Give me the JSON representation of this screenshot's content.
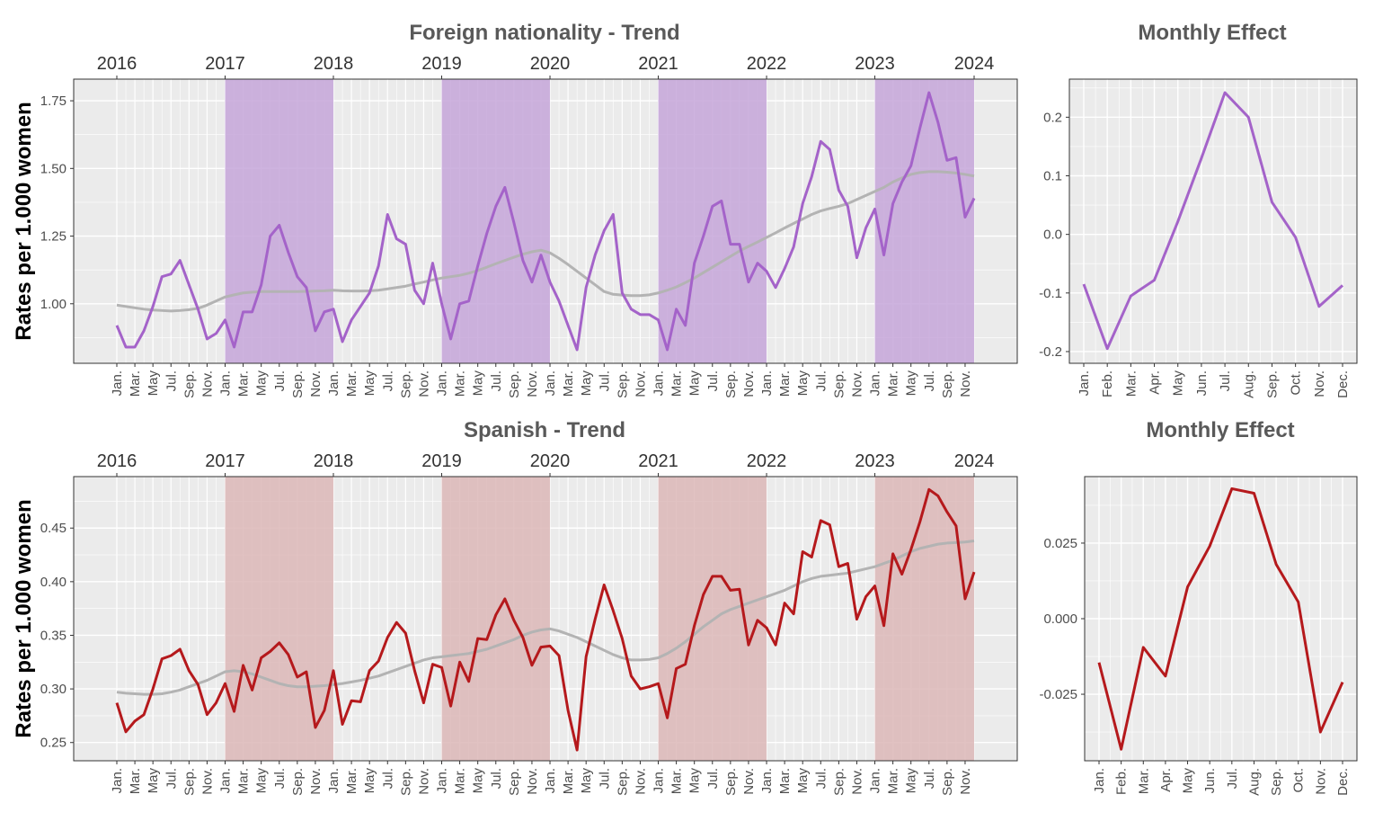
{
  "colors": {
    "foreign": "#a463c9",
    "spanish": "#b5191c",
    "trend": "#b3b3b3",
    "foreign_band": "#c5a6d9",
    "spanish_band": "#dcb7b7",
    "panel_bg": "#ebebeb",
    "grid": "#ffffff"
  },
  "chart_data": [
    {
      "id": "foreign-trend",
      "type": "line",
      "title": "Foreign nationality - Trend",
      "ylabel": "Rates per 1.000 women",
      "xlabel": "",
      "xlim": [
        0,
        95
      ],
      "ylim": [
        0.78,
        1.83
      ],
      "yticks": [
        1.0,
        1.25,
        1.5,
        1.75
      ],
      "ytick_labels": [
        "1.00",
        "1.25",
        "1.50",
        "1.75"
      ],
      "year_labels": [
        "2016",
        "2017",
        "2018",
        "2019",
        "2020",
        "2021",
        "2022",
        "2023",
        "2024"
      ],
      "year_positions": [
        0,
        12,
        24,
        36,
        48,
        60,
        72,
        84,
        95
      ],
      "month_labels": [
        "Jan.",
        "Mar.",
        "May",
        "Jul.",
        "Sep.",
        "Nov."
      ],
      "shaded_ranges": [
        [
          12,
          24
        ],
        [
          36,
          48
        ],
        [
          60,
          72
        ],
        [
          84,
          95
        ]
      ],
      "series": [
        {
          "name": "Foreign nationality",
          "role": "observed",
          "values": [
            0.92,
            0.84,
            0.84,
            0.9,
            0.99,
            1.1,
            1.11,
            1.16,
            1.07,
            0.98,
            0.87,
            0.89,
            0.94,
            0.84,
            0.97,
            0.97,
            1.07,
            1.25,
            1.29,
            1.19,
            1.1,
            1.06,
            0.9,
            0.97,
            0.98,
            0.86,
            0.94,
            0.99,
            1.04,
            1.14,
            1.33,
            1.24,
            1.22,
            1.05,
            1.0,
            1.15,
            1.0,
            0.87,
            1.0,
            1.01,
            1.14,
            1.26,
            1.36,
            1.43,
            1.3,
            1.16,
            1.08,
            1.18,
            1.08,
            1.01,
            0.92,
            0.83,
            1.06,
            1.18,
            1.27,
            1.33,
            1.04,
            0.98,
            0.96,
            0.96,
            0.94,
            0.83,
            0.98,
            0.92,
            1.15,
            1.25,
            1.36,
            1.38,
            1.22,
            1.22,
            1.08,
            1.15,
            1.12,
            1.06,
            1.13,
            1.21,
            1.37,
            1.47,
            1.6,
            1.57,
            1.42,
            1.36,
            1.17,
            1.28,
            1.35,
            1.18,
            1.37,
            1.45,
            1.51,
            1.65,
            1.78,
            1.67,
            1.53,
            1.54,
            1.32,
            1.39
          ]
        },
        {
          "name": "Trend",
          "role": "trend",
          "values": [
            0.995,
            0.99,
            0.985,
            0.98,
            0.977,
            0.975,
            0.973,
            0.975,
            0.978,
            0.983,
            0.995,
            1.01,
            1.025,
            1.033,
            1.04,
            1.043,
            1.045,
            1.045,
            1.045,
            1.045,
            1.045,
            1.046,
            1.047,
            1.048,
            1.05,
            1.048,
            1.047,
            1.047,
            1.048,
            1.05,
            1.055,
            1.06,
            1.065,
            1.073,
            1.08,
            1.088,
            1.095,
            1.1,
            1.105,
            1.113,
            1.123,
            1.135,
            1.148,
            1.16,
            1.172,
            1.183,
            1.192,
            1.198,
            1.188,
            1.168,
            1.145,
            1.12,
            1.095,
            1.07,
            1.045,
            1.035,
            1.032,
            1.03,
            1.03,
            1.033,
            1.04,
            1.05,
            1.062,
            1.078,
            1.095,
            1.115,
            1.135,
            1.155,
            1.175,
            1.195,
            1.212,
            1.228,
            1.245,
            1.262,
            1.28,
            1.297,
            1.313,
            1.33,
            1.343,
            1.352,
            1.36,
            1.37,
            1.385,
            1.4,
            1.415,
            1.43,
            1.45,
            1.465,
            1.478,
            1.485,
            1.488,
            1.488,
            1.486,
            1.483,
            1.478,
            1.472
          ]
        }
      ]
    },
    {
      "id": "foreign-monthly",
      "type": "line",
      "title": "Monthly Effect",
      "xlabel": "",
      "ylabel": "",
      "categories": [
        "Jan.",
        "Feb.",
        "Mar.",
        "Apr.",
        "May",
        "Jun.",
        "Jul.",
        "Aug.",
        "Sep.",
        "Oct.",
        "Nov.",
        "Dec."
      ],
      "ylim": [
        -0.22,
        0.265
      ],
      "yticks": [
        -0.2,
        -0.1,
        0.0,
        0.1,
        0.2
      ],
      "ytick_labels": [
        "-0.2",
        "-0.1",
        "0.0",
        "0.1",
        "0.2"
      ],
      "series": [
        {
          "name": "Monthly Effect",
          "values": [
            -0.085,
            -0.195,
            -0.105,
            -0.078,
            0.022,
            0.13,
            0.242,
            0.2,
            0.055,
            -0.005,
            -0.123,
            -0.087
          ]
        }
      ]
    },
    {
      "id": "spanish-trend",
      "type": "line",
      "title": "Spanish - Trend",
      "ylabel": "Rates per 1.000 women",
      "xlabel": "",
      "xlim": [
        0,
        95
      ],
      "ylim": [
        0.233,
        0.498
      ],
      "yticks": [
        0.25,
        0.3,
        0.35,
        0.4,
        0.45
      ],
      "ytick_labels": [
        "0.25",
        "0.30",
        "0.35",
        "0.40",
        "0.45"
      ],
      "year_labels": [
        "2016",
        "2017",
        "2018",
        "2019",
        "2020",
        "2021",
        "2022",
        "2023",
        "2024"
      ],
      "year_positions": [
        0,
        12,
        24,
        36,
        48,
        60,
        72,
        84,
        95
      ],
      "month_labels": [
        "Jan.",
        "Mar.",
        "May",
        "Jul.",
        "Sep.",
        "Nov."
      ],
      "shaded_ranges": [
        [
          12,
          24
        ],
        [
          36,
          48
        ],
        [
          60,
          72
        ],
        [
          84,
          95
        ]
      ],
      "series": [
        {
          "name": "Spanish",
          "role": "observed",
          "values": [
            0.287,
            0.26,
            0.27,
            0.276,
            0.3,
            0.328,
            0.331,
            0.337,
            0.317,
            0.304,
            0.276,
            0.287,
            0.305,
            0.279,
            0.322,
            0.299,
            0.329,
            0.335,
            0.343,
            0.332,
            0.311,
            0.316,
            0.264,
            0.28,
            0.317,
            0.267,
            0.289,
            0.288,
            0.317,
            0.326,
            0.348,
            0.362,
            0.352,
            0.317,
            0.287,
            0.323,
            0.32,
            0.284,
            0.325,
            0.307,
            0.347,
            0.346,
            0.369,
            0.384,
            0.364,
            0.348,
            0.322,
            0.339,
            0.34,
            0.331,
            0.28,
            0.243,
            0.33,
            0.365,
            0.397,
            0.373,
            0.347,
            0.312,
            0.3,
            0.302,
            0.305,
            0.273,
            0.319,
            0.323,
            0.359,
            0.388,
            0.405,
            0.405,
            0.392,
            0.393,
            0.341,
            0.364,
            0.357,
            0.341,
            0.38,
            0.37,
            0.428,
            0.423,
            0.457,
            0.453,
            0.414,
            0.417,
            0.365,
            0.386,
            0.396,
            0.359,
            0.426,
            0.407,
            0.43,
            0.456,
            0.486,
            0.48,
            0.465,
            0.452,
            0.384,
            0.409
          ]
        },
        {
          "name": "Trend",
          "role": "trend",
          "values": [
            0.297,
            0.296,
            0.2955,
            0.295,
            0.295,
            0.2955,
            0.297,
            0.299,
            0.302,
            0.305,
            0.308,
            0.312,
            0.316,
            0.317,
            0.316,
            0.314,
            0.311,
            0.308,
            0.305,
            0.303,
            0.302,
            0.302,
            0.3025,
            0.303,
            0.304,
            0.305,
            0.3065,
            0.308,
            0.31,
            0.312,
            0.315,
            0.318,
            0.321,
            0.324,
            0.327,
            0.329,
            0.33,
            0.331,
            0.332,
            0.333,
            0.335,
            0.337,
            0.34,
            0.343,
            0.346,
            0.35,
            0.353,
            0.355,
            0.356,
            0.354,
            0.351,
            0.348,
            0.344,
            0.34,
            0.336,
            0.332,
            0.329,
            0.327,
            0.327,
            0.3275,
            0.329,
            0.333,
            0.338,
            0.344,
            0.351,
            0.358,
            0.364,
            0.37,
            0.374,
            0.377,
            0.38,
            0.383,
            0.386,
            0.389,
            0.392,
            0.396,
            0.4,
            0.403,
            0.405,
            0.406,
            0.407,
            0.408,
            0.41,
            0.412,
            0.414,
            0.417,
            0.42,
            0.424,
            0.428,
            0.431,
            0.433,
            0.435,
            0.436,
            0.4365,
            0.437,
            0.438
          ]
        }
      ]
    },
    {
      "id": "spanish-monthly",
      "type": "line",
      "title": "Monthly Effect",
      "xlabel": "",
      "ylabel": "",
      "categories": [
        "Jan.",
        "Feb.",
        "Mar.",
        "Apr.",
        "May",
        "Jun.",
        "Jul.",
        "Aug.",
        "Sep.",
        "Oct.",
        "Nov.",
        "Dec."
      ],
      "ylim": [
        -0.047,
        0.047
      ],
      "yticks": [
        -0.025,
        0.0,
        0.025
      ],
      "ytick_labels": [
        "-0.025",
        "0.000",
        "0.025"
      ],
      "series": [
        {
          "name": "Monthly Effect",
          "values": [
            -0.0145,
            -0.0432,
            -0.0095,
            -0.019,
            0.0105,
            0.024,
            0.043,
            0.0415,
            0.018,
            0.0055,
            -0.0375,
            -0.021
          ]
        }
      ]
    }
  ]
}
